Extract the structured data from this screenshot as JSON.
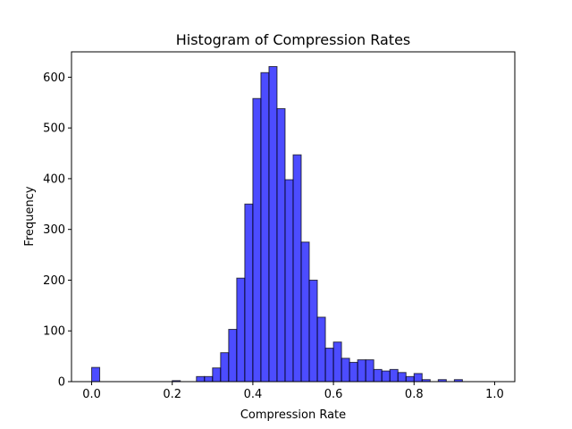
{
  "chart_data": {
    "type": "bar",
    "title": "Histogram of Compression Rates",
    "xlabel": "Compression Rate",
    "ylabel": "Frequency",
    "xlim": [
      -0.05,
      1.05
    ],
    "ylim": [
      0,
      650
    ],
    "xticks": [
      0.0,
      0.2,
      0.4,
      0.6,
      0.8,
      1.0
    ],
    "xtick_labels": [
      "0.0",
      "0.2",
      "0.4",
      "0.6",
      "0.8",
      "1.0"
    ],
    "yticks": [
      0,
      100,
      200,
      300,
      400,
      500,
      600
    ],
    "ytick_labels": [
      "0",
      "100",
      "200",
      "300",
      "400",
      "500",
      "600"
    ],
    "bin_width": 0.02,
    "bin_starts": [
      0.0,
      0.02,
      0.04,
      0.06,
      0.08,
      0.1,
      0.12,
      0.14,
      0.16,
      0.18,
      0.2,
      0.22,
      0.24,
      0.26,
      0.28,
      0.3,
      0.32,
      0.34,
      0.36,
      0.38,
      0.4,
      0.42,
      0.44,
      0.46,
      0.48,
      0.5,
      0.52,
      0.54,
      0.56,
      0.58,
      0.6,
      0.62,
      0.64,
      0.66,
      0.68,
      0.7,
      0.72,
      0.74,
      0.76,
      0.78,
      0.8,
      0.82,
      0.84,
      0.86,
      0.88,
      0.9,
      0.92,
      0.94,
      0.96,
      0.98
    ],
    "values": [
      28,
      0,
      0,
      0,
      0,
      0,
      0,
      0,
      0,
      0,
      2,
      0,
      0,
      10,
      10,
      27,
      57,
      103,
      204,
      350,
      558,
      609,
      621,
      538,
      398,
      447,
      275,
      200,
      127,
      66,
      78,
      46,
      38,
      43,
      43,
      24,
      21,
      24,
      18,
      10,
      16,
      4,
      0,
      4,
      0,
      4,
      0,
      0,
      0,
      0
    ],
    "bar_color": "#0000ff",
    "bar_alpha": 0.7,
    "edge_color": "#000000",
    "grid": false
  }
}
